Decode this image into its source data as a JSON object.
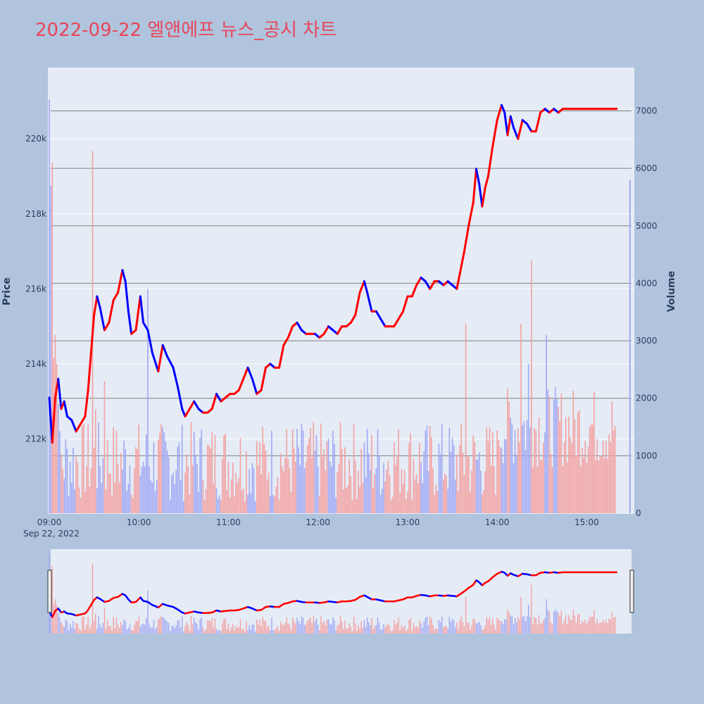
{
  "title": "2022-09-22 엘앤에프 뉴스_공시 차트",
  "colors": {
    "background": "#b0c4de",
    "plot_bg": "#e5ecf6",
    "rising": "#ff0000",
    "falling": "#0000ff",
    "volume_rising": "#f4a0a0",
    "volume_falling": "#a0a8f4",
    "volume_grid": "#808080",
    "title": "#e8465a"
  },
  "chart_data": {
    "type": "line",
    "title": "2022-09-22 엘앤에프 뉴스_공시 차트",
    "xlabel": "",
    "ylabel": "Price",
    "y2label": "Volume",
    "date_label": "Sep 22, 2022",
    "x_range": [
      "09:00",
      "15:30"
    ],
    "x_ticks": [
      "09:00",
      "10:00",
      "11:00",
      "12:00",
      "13:00",
      "14:00",
      "15:00"
    ],
    "ylim": [
      210000,
      221900
    ],
    "y_ticks": [
      212000,
      214000,
      216000,
      218000,
      220000
    ],
    "y_tick_labels": [
      "212k",
      "214k",
      "216k",
      "218k",
      "220k"
    ],
    "y2lim": [
      0,
      7300
    ],
    "y2_ticks": [
      0,
      1000,
      2000,
      3000,
      4000,
      5000,
      6000,
      7000
    ],
    "y2_tick_labels": [
      "0",
      "1000",
      "2000",
      "3000",
      "4000",
      "5000",
      "6000",
      "7000"
    ],
    "series": [
      {
        "kind": "price",
        "points": [
          [
            "09:00",
            213100
          ],
          [
            "09:02",
            211900
          ],
          [
            "09:04",
            213100
          ],
          [
            "09:06",
            213600
          ],
          [
            "09:08",
            212800
          ],
          [
            "09:10",
            213000
          ],
          [
            "09:12",
            212600
          ],
          [
            "09:15",
            212500
          ],
          [
            "09:18",
            212200
          ],
          [
            "09:21",
            212400
          ],
          [
            "09:24",
            212600
          ],
          [
            "09:26",
            213300
          ],
          [
            "09:28",
            214300
          ],
          [
            "09:30",
            215300
          ],
          [
            "09:32",
            215800
          ],
          [
            "09:34",
            215500
          ],
          [
            "09:37",
            214900
          ],
          [
            "09:40",
            215100
          ],
          [
            "09:43",
            215700
          ],
          [
            "09:46",
            215900
          ],
          [
            "09:49",
            216500
          ],
          [
            "09:51",
            216200
          ],
          [
            "09:53",
            215400
          ],
          [
            "09:55",
            214800
          ],
          [
            "09:58",
            214900
          ],
          [
            "10:01",
            215800
          ],
          [
            "10:03",
            215100
          ],
          [
            "10:06",
            214900
          ],
          [
            "10:09",
            214300
          ],
          [
            "10:13",
            213800
          ],
          [
            "10:16",
            214500
          ],
          [
            "10:19",
            214200
          ],
          [
            "10:23",
            213900
          ],
          [
            "10:26",
            213400
          ],
          [
            "10:29",
            212800
          ],
          [
            "10:31",
            212600
          ],
          [
            "10:34",
            212800
          ],
          [
            "10:37",
            213000
          ],
          [
            "10:40",
            212800
          ],
          [
            "10:43",
            212700
          ],
          [
            "10:46",
            212700
          ],
          [
            "10:49",
            212800
          ],
          [
            "10:52",
            213200
          ],
          [
            "10:55",
            213000
          ],
          [
            "10:58",
            213100
          ],
          [
            "11:01",
            213200
          ],
          [
            "11:04",
            213200
          ],
          [
            "11:07",
            213300
          ],
          [
            "11:10",
            213600
          ],
          [
            "11:13",
            213900
          ],
          [
            "11:16",
            213600
          ],
          [
            "11:19",
            213200
          ],
          [
            "11:22",
            213300
          ],
          [
            "11:25",
            213900
          ],
          [
            "11:28",
            214000
          ],
          [
            "11:31",
            213900
          ],
          [
            "11:34",
            213900
          ],
          [
            "11:37",
            214500
          ],
          [
            "11:40",
            214700
          ],
          [
            "11:43",
            215000
          ],
          [
            "11:46",
            215100
          ],
          [
            "11:49",
            214900
          ],
          [
            "11:52",
            214800
          ],
          [
            "11:55",
            214800
          ],
          [
            "11:58",
            214800
          ],
          [
            "12:01",
            214700
          ],
          [
            "12:04",
            214800
          ],
          [
            "12:07",
            215000
          ],
          [
            "12:10",
            214900
          ],
          [
            "12:13",
            214800
          ],
          [
            "12:16",
            215000
          ],
          [
            "12:19",
            215000
          ],
          [
            "12:22",
            215100
          ],
          [
            "12:25",
            215300
          ],
          [
            "12:28",
            215900
          ],
          [
            "12:31",
            216200
          ],
          [
            "12:33",
            215900
          ],
          [
            "12:36",
            215400
          ],
          [
            "12:39",
            215400
          ],
          [
            "12:42",
            215200
          ],
          [
            "12:45",
            215000
          ],
          [
            "12:48",
            215000
          ],
          [
            "12:51",
            215000
          ],
          [
            "12:54",
            215200
          ],
          [
            "12:57",
            215400
          ],
          [
            "13:00",
            215800
          ],
          [
            "13:03",
            215800
          ],
          [
            "13:06",
            216100
          ],
          [
            "13:09",
            216300
          ],
          [
            "13:12",
            216200
          ],
          [
            "13:15",
            216000
          ],
          [
            "13:18",
            216200
          ],
          [
            "13:21",
            216200
          ],
          [
            "13:24",
            216100
          ],
          [
            "13:27",
            216200
          ],
          [
            "13:30",
            216100
          ],
          [
            "13:33",
            216000
          ],
          [
            "13:35",
            216400
          ],
          [
            "13:38",
            217000
          ],
          [
            "13:41",
            217700
          ],
          [
            "13:44",
            218300
          ],
          [
            "13:46",
            219200
          ],
          [
            "13:48",
            218800
          ],
          [
            "13:50",
            218200
          ],
          [
            "13:52",
            218700
          ],
          [
            "13:54",
            219000
          ],
          [
            "13:57",
            219800
          ],
          [
            "14:00",
            220500
          ],
          [
            "14:03",
            220900
          ],
          [
            "14:05",
            220700
          ],
          [
            "14:07",
            220100
          ],
          [
            "14:09",
            220600
          ],
          [
            "14:11",
            220300
          ],
          [
            "14:14",
            220000
          ],
          [
            "14:17",
            220500
          ],
          [
            "14:20",
            220400
          ],
          [
            "14:23",
            220200
          ],
          [
            "14:26",
            220200
          ],
          [
            "14:29",
            220700
          ],
          [
            "14:32",
            220800
          ],
          [
            "14:35",
            220700
          ],
          [
            "14:38",
            220800
          ],
          [
            "14:41",
            220700
          ],
          [
            "14:44",
            220800
          ],
          [
            "15:20",
            220800
          ]
        ]
      },
      {
        "kind": "volume",
        "spikes": [
          [
            "09:00",
            7200
          ],
          [
            "09:01",
            5700
          ],
          [
            "09:02",
            6100
          ],
          [
            "09:03",
            2700
          ],
          [
            "09:04",
            3100
          ],
          [
            "09:05",
            2600
          ],
          [
            "09:06",
            1900
          ],
          [
            "09:29",
            6300
          ],
          [
            "09:31",
            1800
          ],
          [
            "09:37",
            2300
          ],
          [
            "10:06",
            3900
          ],
          [
            "13:39",
            3300
          ],
          [
            "14:16",
            3300
          ],
          [
            "14:21",
            2600
          ],
          [
            "14:23",
            4400
          ],
          [
            "14:33",
            3100
          ]
        ],
        "last": [
          "15:29",
          5800
        ]
      }
    ]
  }
}
